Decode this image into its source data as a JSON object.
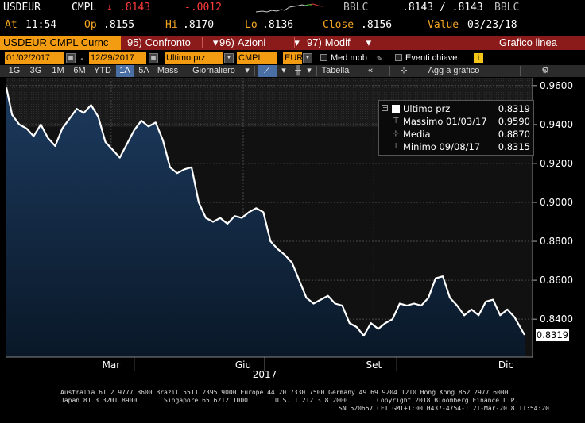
{
  "header": {
    "line1": {
      "symbol": "USDEUR",
      "source": "CMPL",
      "arrow": "↓",
      "last": ".8143",
      "change": "-.0012",
      "feed": "BBLC",
      "bidask": ".8143 / .8143",
      "feed2": "BBLC"
    },
    "line2": {
      "at_label": "At",
      "at_time": "11:54",
      "op_label": "Op",
      "op": ".8155",
      "hi_label": "Hi",
      "hi": ".8170",
      "lo_label": "Lo",
      "lo": ".8136",
      "close_label": "Close",
      "close": ".8156",
      "value_label": "Value",
      "value_date": "03/23/18"
    }
  },
  "menubar": {
    "ticker": "USDEUR CMPL Curnc",
    "items": [
      {
        "num": "95)",
        "label": "Confronto"
      },
      {
        "num": "96)",
        "label": "Azioni"
      },
      {
        "num": "97)",
        "label": "Modif"
      }
    ],
    "right": "Grafico linea"
  },
  "options": {
    "start_date": "01/02/2017",
    "dash": "-",
    "end_date": "12/29/2017",
    "price_type": "Ultimo prz",
    "source": "CMPL",
    "currency": "EUR",
    "med_mob": "Med mob",
    "eventi": "Eventi chiave"
  },
  "toolbar": {
    "periods": [
      "1G",
      "3G",
      "1M",
      "6M",
      "YTD",
      "1A",
      "5A",
      "Mass"
    ],
    "active": "1A",
    "frequency": "Giornaliero",
    "tabella": "Tabella",
    "add": "Agg a grafico"
  },
  "legend": {
    "rows": [
      {
        "label": "Ultimo prz",
        "value": "0.8319"
      },
      {
        "label": "Massimo 01/03/17",
        "value": "0.9590"
      },
      {
        "label": "Media",
        "value": "0.8870"
      },
      {
        "label": "Minimo 09/08/17",
        "value": "0.8315"
      }
    ]
  },
  "chart_data": {
    "type": "area",
    "title": "",
    "xlabel": "2017",
    "ylabel": "",
    "x_ticks": [
      "Mar",
      "Giu",
      "Set",
      "Dic"
    ],
    "y_ticks": [
      "0.9600",
      "0.9400",
      "0.9200",
      "0.9000",
      "0.8800",
      "0.8600",
      "0.8400"
    ],
    "ylim": [
      0.8205,
      0.964
    ],
    "last_label": "0.8319",
    "series": [
      {
        "name": "Ultimo prz",
        "x": [
          "2017-01-02",
          "2017-01-06",
          "2017-01-11",
          "2017-01-16",
          "2017-01-21",
          "2017-01-26",
          "2017-01-31",
          "2017-02-05",
          "2017-02-10",
          "2017-02-15",
          "2017-02-20",
          "2017-02-25",
          "2017-03-02",
          "2017-03-07",
          "2017-03-12",
          "2017-03-17",
          "2017-03-22",
          "2017-03-27",
          "2017-04-01",
          "2017-04-06",
          "2017-04-11",
          "2017-04-16",
          "2017-04-21",
          "2017-04-26",
          "2017-05-01",
          "2017-05-06",
          "2017-05-11",
          "2017-05-16",
          "2017-05-21",
          "2017-05-26",
          "2017-05-31",
          "2017-06-05",
          "2017-06-10",
          "2017-06-15",
          "2017-06-20",
          "2017-06-25",
          "2017-06-30",
          "2017-07-05",
          "2017-07-10",
          "2017-07-15",
          "2017-07-20",
          "2017-07-25",
          "2017-07-30",
          "2017-08-04",
          "2017-08-09",
          "2017-08-14",
          "2017-08-19",
          "2017-08-24",
          "2017-08-29",
          "2017-09-03",
          "2017-09-08",
          "2017-09-13",
          "2017-09-18",
          "2017-09-23",
          "2017-09-28",
          "2017-10-03",
          "2017-10-08",
          "2017-10-13",
          "2017-10-18",
          "2017-10-23",
          "2017-10-28",
          "2017-11-02",
          "2017-11-07",
          "2017-11-12",
          "2017-11-17",
          "2017-11-22",
          "2017-11-27",
          "2017-12-02",
          "2017-12-07",
          "2017-12-12",
          "2017-12-17",
          "2017-12-22",
          "2017-12-29"
        ],
        "y": [
          0.959,
          0.945,
          0.94,
          0.938,
          0.934,
          0.94,
          0.933,
          0.929,
          0.938,
          0.943,
          0.948,
          0.946,
          0.95,
          0.944,
          0.931,
          0.927,
          0.923,
          0.93,
          0.937,
          0.942,
          0.939,
          0.941,
          0.932,
          0.918,
          0.915,
          0.917,
          0.918,
          0.9,
          0.892,
          0.89,
          0.892,
          0.889,
          0.893,
          0.892,
          0.895,
          0.897,
          0.895,
          0.88,
          0.876,
          0.873,
          0.869,
          0.86,
          0.851,
          0.848,
          0.85,
          0.852,
          0.848,
          0.847,
          0.838,
          0.836,
          0.8315,
          0.838,
          0.835,
          0.838,
          0.84,
          0.848,
          0.847,
          0.848,
          0.847,
          0.851,
          0.861,
          0.862,
          0.851,
          0.847,
          0.842,
          0.845,
          0.842,
          0.849,
          0.85,
          0.842,
          0.845,
          0.841,
          0.8319
        ]
      }
    ]
  },
  "footer": {
    "line1": "Australia 61 2 9777 8600 Brazil 5511 2395 9000 Europe 44 20 7330 7500 Germany 49 69 9204 1210 Hong Kong 852 2977 6000",
    "line2a": "Japan 81 3 3201 8900",
    "line2b": "Singapore 65 6212 1000",
    "line2c": "U.S. 1 212 318 2000",
    "line2d": "Copyright 2018 Bloomberg Finance L.P.",
    "line3": "SN 520657 CET  GMT+1:00 H437-4754-1 21-Mar-2018 11:54:20"
  },
  "colors": {
    "line": "#ffffff",
    "area_top": "#1c3a5e",
    "area_bottom": "#0a1828",
    "accent_orange": "#f39c12",
    "menubar_red": "#8b1a1a"
  }
}
